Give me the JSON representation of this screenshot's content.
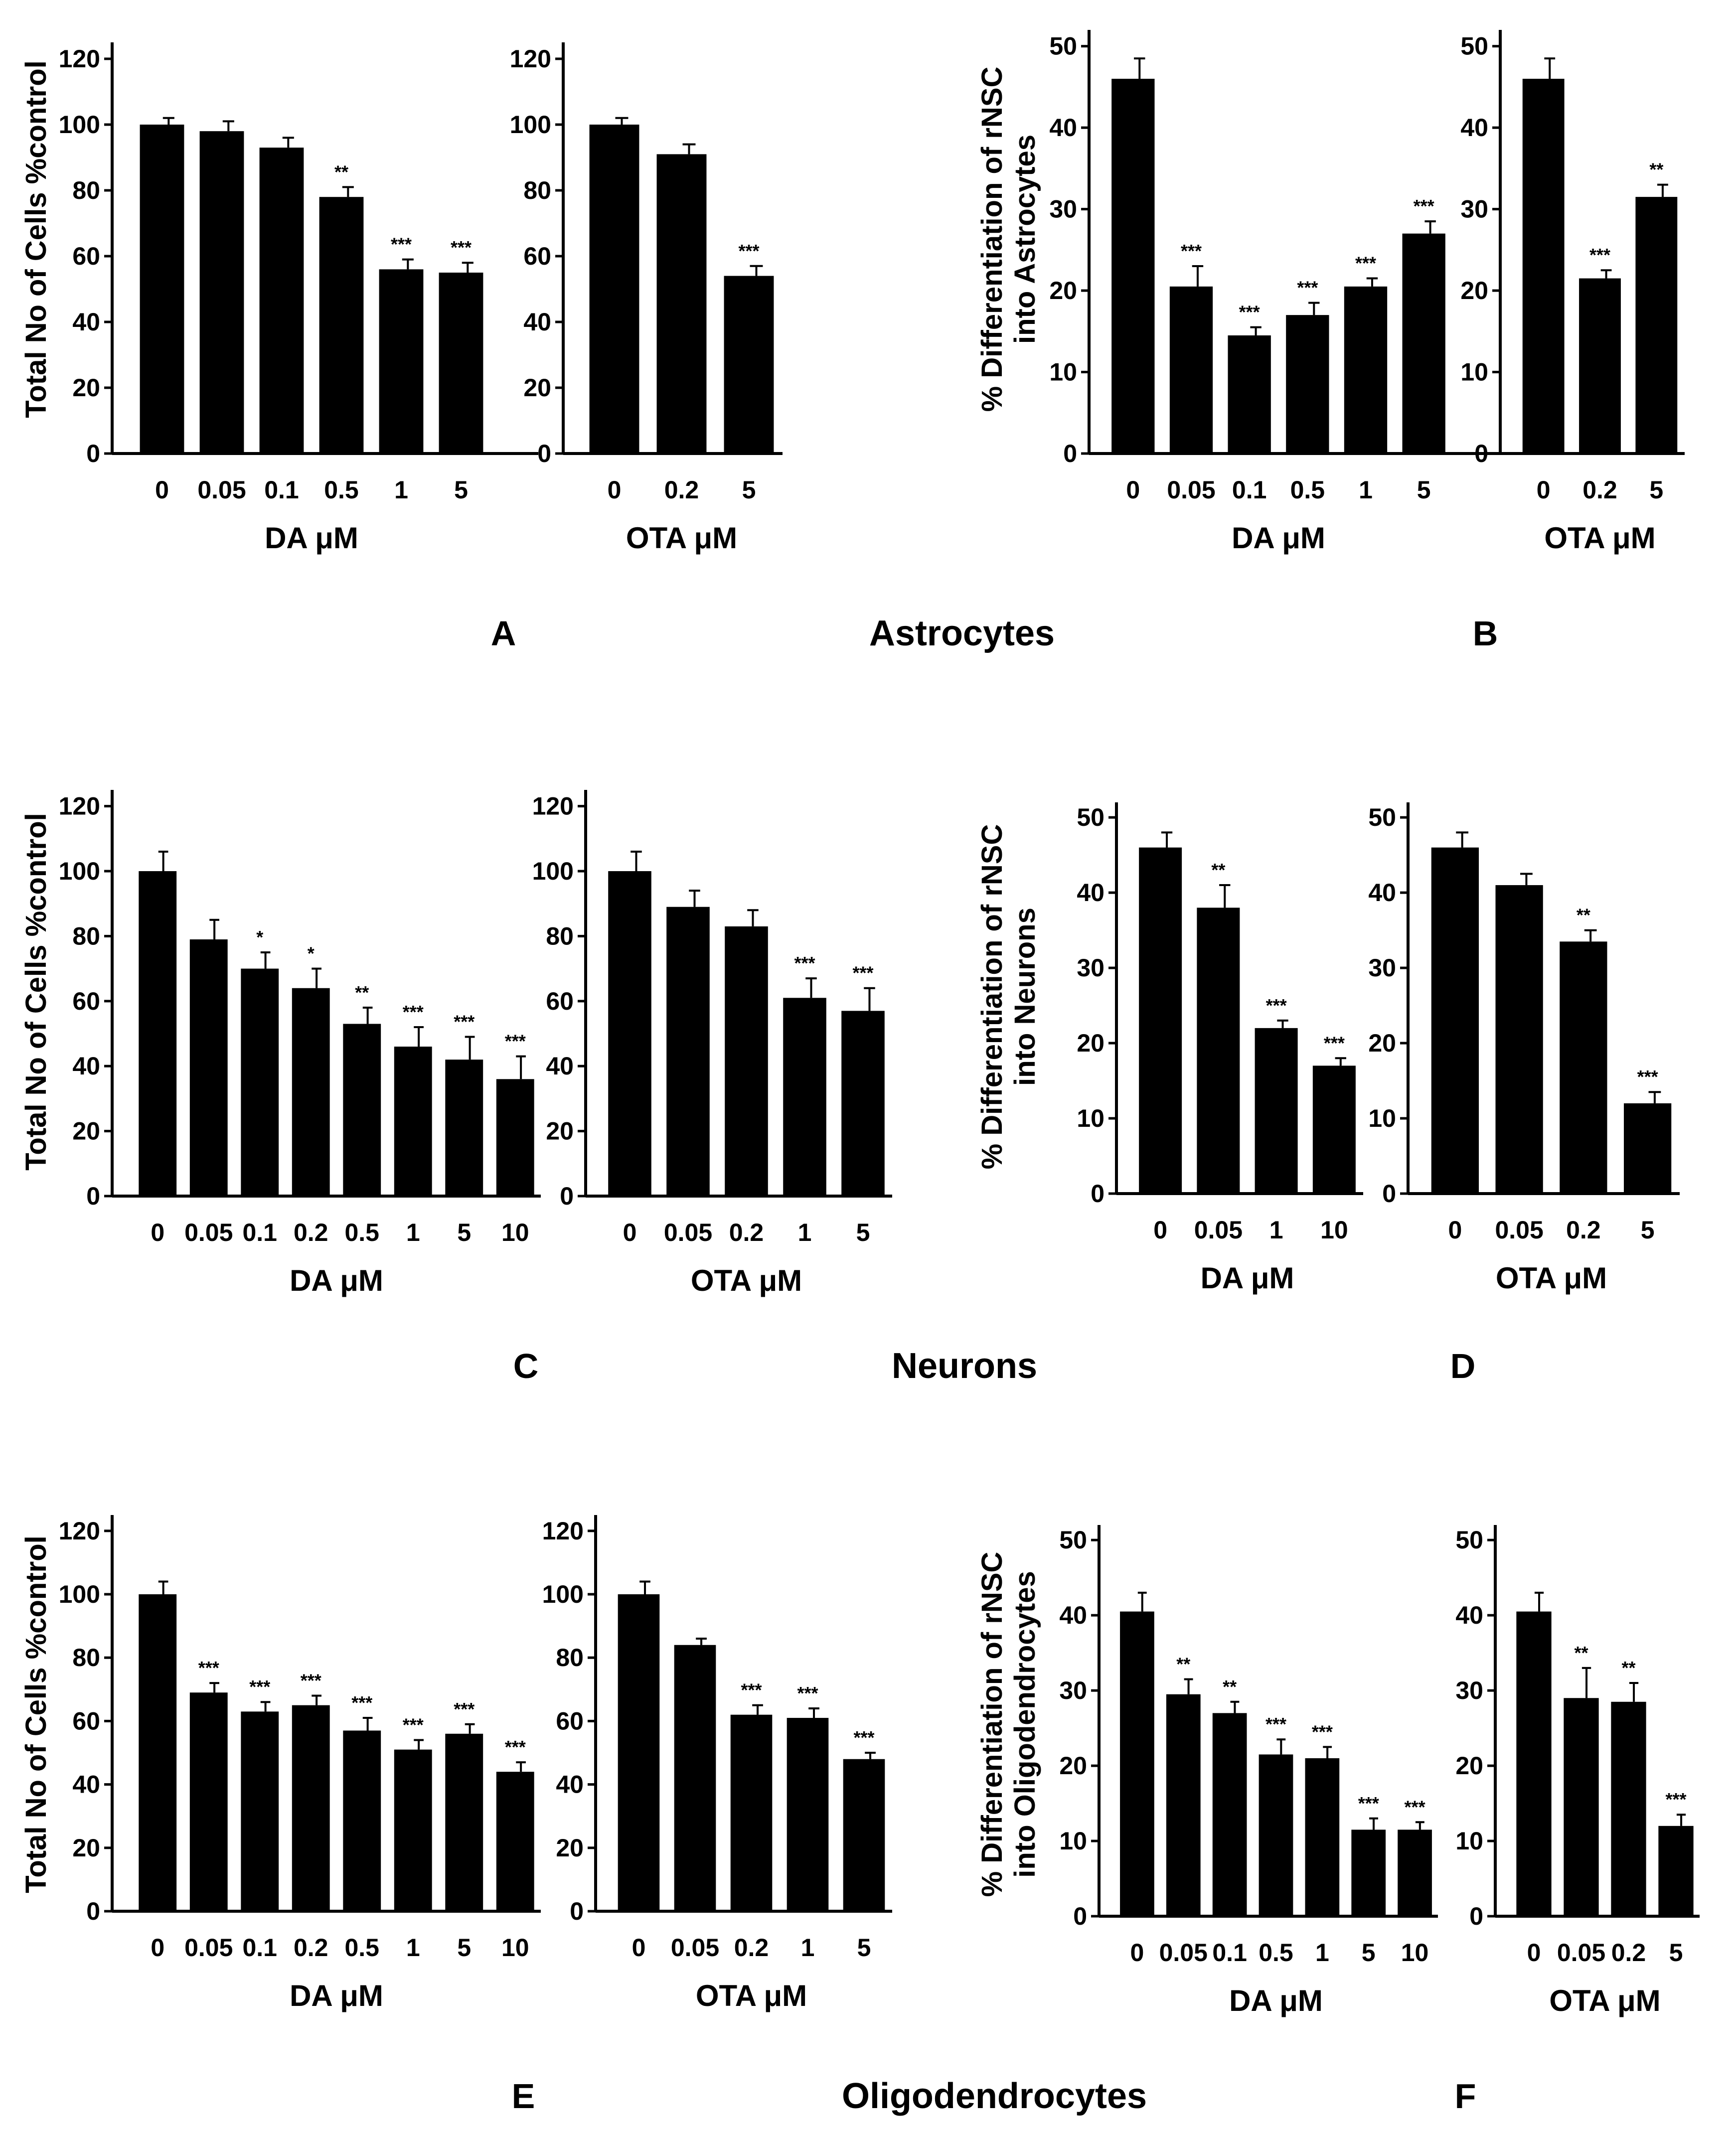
{
  "colors": {
    "bar": "#000000",
    "axis": "#000000",
    "background": "#ffffff"
  },
  "rows": [
    {
      "title": "Astrocytes",
      "left_letter": "A",
      "right_letter": "B"
    },
    {
      "title": "Neurons",
      "left_letter": "C",
      "right_letter": "D"
    },
    {
      "title": "Oligodendrocytes",
      "left_letter": "E",
      "right_letter": "F"
    }
  ],
  "chart_data": [
    {
      "panel": "A",
      "type": "bar",
      "ylabel": "Total No of Cells %control",
      "ylim": [
        0,
        125
      ],
      "yticks": [
        0,
        20,
        40,
        60,
        80,
        100,
        120
      ],
      "subplots": [
        {
          "xlabel": "DA μM",
          "categories": [
            "0",
            "0.05",
            "0.1",
            "0.5",
            "1",
            "5"
          ],
          "values": [
            100,
            98,
            93,
            78,
            56,
            55
          ],
          "errors": [
            2,
            3,
            3,
            3,
            3,
            3
          ],
          "significance": [
            "",
            "",
            "",
            "**",
            "***",
            "***"
          ]
        },
        {
          "xlabel": "OTA μM",
          "categories": [
            "0",
            "0.2",
            "5"
          ],
          "values": [
            100,
            91,
            54
          ],
          "errors": [
            2,
            3,
            3
          ],
          "significance": [
            "",
            "",
            "***"
          ]
        }
      ]
    },
    {
      "panel": "B",
      "type": "bar",
      "ylabel": "% Differentiation of rNSC into Astrocytes",
      "ylim": [
        0,
        52
      ],
      "yticks": [
        0,
        10,
        20,
        30,
        40,
        50
      ],
      "subplots": [
        {
          "xlabel": "DA μM",
          "categories": [
            "0",
            "0.05",
            "0.1",
            "0.5",
            "1",
            "5"
          ],
          "values": [
            46,
            20.5,
            14.5,
            17,
            20.5,
            27
          ],
          "errors": [
            2.5,
            2.5,
            1,
            1.5,
            1,
            1.5
          ],
          "significance": [
            "",
            "***",
            "***",
            "***",
            "***",
            "***"
          ]
        },
        {
          "xlabel": "OTA μM",
          "categories": [
            "0",
            "0.2",
            "5"
          ],
          "values": [
            46,
            21.5,
            31.5
          ],
          "errors": [
            2.5,
            1,
            1.5
          ],
          "significance": [
            "",
            "***",
            "**"
          ]
        }
      ]
    },
    {
      "panel": "C",
      "type": "bar",
      "ylabel": "Total No of Cells %control",
      "ylim": [
        0,
        125
      ],
      "yticks": [
        0,
        20,
        40,
        60,
        80,
        100,
        120
      ],
      "subplots": [
        {
          "xlabel": "DA μM",
          "categories": [
            "0",
            "0.05",
            "0.1",
            "0.2",
            "0.5",
            "1",
            "5",
            "10"
          ],
          "values": [
            100,
            79,
            70,
            64,
            53,
            46,
            42,
            36
          ],
          "errors": [
            6,
            6,
            5,
            6,
            5,
            6,
            7,
            7
          ],
          "significance": [
            "",
            "",
            "*",
            "*",
            "**",
            "***",
            "***",
            "***"
          ]
        },
        {
          "xlabel": "OTA μM",
          "categories": [
            "0",
            "0.05",
            "0.2",
            "1",
            "5"
          ],
          "values": [
            100,
            89,
            83,
            61,
            57
          ],
          "errors": [
            6,
            5,
            5,
            6,
            7
          ],
          "significance": [
            "",
            "",
            "",
            "***",
            "***"
          ]
        }
      ]
    },
    {
      "panel": "D",
      "type": "bar",
      "ylabel": "% Differentiation of rNSC into Neurons",
      "ylim": [
        0,
        52
      ],
      "yticks": [
        0,
        10,
        20,
        30,
        40,
        50
      ],
      "subplots": [
        {
          "xlabel": "DA μM",
          "categories": [
            "0",
            "0.05",
            "1",
            "10"
          ],
          "values": [
            46,
            38,
            22,
            17
          ],
          "errors": [
            2,
            3,
            1,
            1
          ],
          "significance": [
            "",
            "**",
            "***",
            "***"
          ]
        },
        {
          "xlabel": "OTA μM",
          "categories": [
            "0",
            "0.05",
            "0.2",
            "5"
          ],
          "values": [
            46,
            41,
            33.5,
            12
          ],
          "errors": [
            2,
            1.5,
            1.5,
            1.5
          ],
          "significance": [
            "",
            "",
            "**",
            "***"
          ]
        }
      ]
    },
    {
      "panel": "E",
      "type": "bar",
      "ylabel": "Total No of Cells %control",
      "ylim": [
        0,
        125
      ],
      "yticks": [
        0,
        20,
        40,
        60,
        80,
        100,
        120
      ],
      "subplots": [
        {
          "xlabel": "DA μM",
          "categories": [
            "0",
            "0.05",
            "0.1",
            "0.2",
            "0.5",
            "1",
            "5",
            "10"
          ],
          "values": [
            100,
            69,
            63,
            65,
            57,
            51,
            56,
            44
          ],
          "errors": [
            4,
            3,
            3,
            3,
            4,
            3,
            3,
            3
          ],
          "significance": [
            "",
            "***",
            "***",
            "***",
            "***",
            "***",
            "***",
            "***"
          ]
        },
        {
          "xlabel": "OTA μM",
          "categories": [
            "0",
            "0.05",
            "0.2",
            "1",
            "5"
          ],
          "values": [
            100,
            84,
            62,
            61,
            48
          ],
          "errors": [
            4,
            2,
            3,
            3,
            2
          ],
          "significance": [
            "",
            "",
            "***",
            "***",
            "***"
          ]
        }
      ]
    },
    {
      "panel": "F",
      "type": "bar",
      "ylabel": "% Differentiation of rNSC into Oligodendrocytes",
      "ylim": [
        0,
        52
      ],
      "yticks": [
        0,
        10,
        20,
        30,
        40,
        50
      ],
      "subplots": [
        {
          "xlabel": "DA μM",
          "categories": [
            "0",
            "0.05",
            "0.1",
            "0.5",
            "1",
            "5",
            "10"
          ],
          "values": [
            40.5,
            29.5,
            27,
            21.5,
            21,
            11.5,
            11.5
          ],
          "errors": [
            2.5,
            2,
            1.5,
            2,
            1.5,
            1.5,
            1
          ],
          "significance": [
            "",
            "**",
            "**",
            "***",
            "***",
            "***",
            "***"
          ]
        },
        {
          "xlabel": "OTA μM",
          "categories": [
            "0",
            "0.05",
            "0.2",
            "5"
          ],
          "values": [
            40.5,
            29,
            28.5,
            12
          ],
          "errors": [
            2.5,
            4,
            2.5,
            1.5
          ],
          "significance": [
            "",
            "**",
            "**",
            "***"
          ]
        }
      ]
    }
  ]
}
